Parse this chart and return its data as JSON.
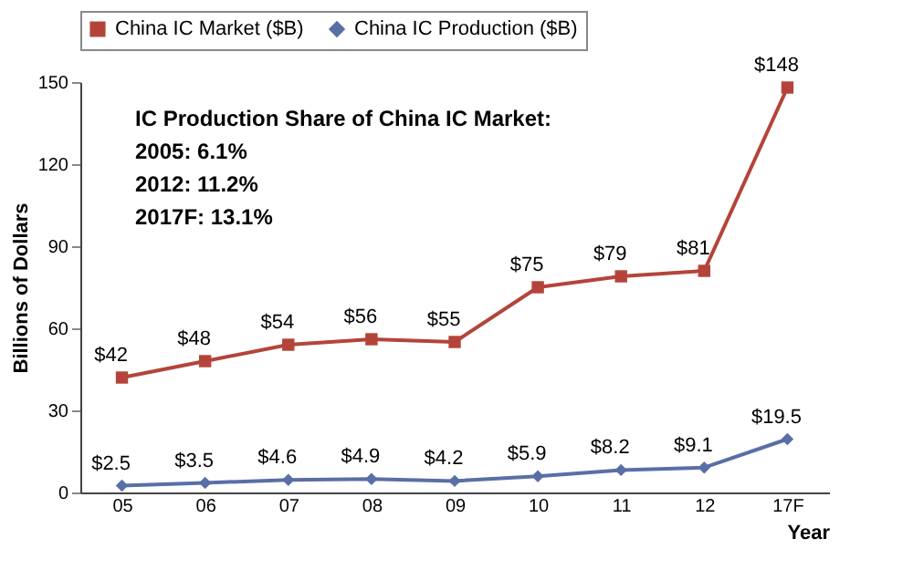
{
  "chart_data": {
    "type": "line",
    "xlabel": "Year",
    "ylabel": "Billions of Dollars",
    "categories": [
      "05",
      "06",
      "07",
      "08",
      "09",
      "10",
      "11",
      "12",
      "17F"
    ],
    "ylim": [
      0,
      150
    ],
    "yticks": [
      0,
      30,
      60,
      90,
      120,
      150
    ],
    "grid": false,
    "legend": "top",
    "series": [
      {
        "name": "China IC Market ($B)",
        "color": "#b4443a",
        "marker": "square",
        "values": [
          42,
          48,
          54,
          56,
          55,
          75,
          79,
          81,
          148
        ],
        "value_labels": [
          "$42",
          "$48",
          "$54",
          "$56",
          "$55",
          "$75",
          "$79",
          "$81",
          "$148"
        ]
      },
      {
        "name": "China IC Production ($B)",
        "color": "#5a6ea6",
        "marker": "diamond",
        "values": [
          2.5,
          3.5,
          4.6,
          4.9,
          4.2,
          5.9,
          8.2,
          9.1,
          19.5
        ],
        "value_labels": [
          "$2.5",
          "$3.5",
          "$4.6",
          "$4.9",
          "$4.2",
          "$5.9",
          "$8.2",
          "$9.1",
          "$19.5"
        ]
      }
    ],
    "annotations": [
      "IC Production Share of China IC Market:",
      "2005: 6.1%",
      "2012: 11.2%",
      "2017F: 13.1%"
    ]
  }
}
